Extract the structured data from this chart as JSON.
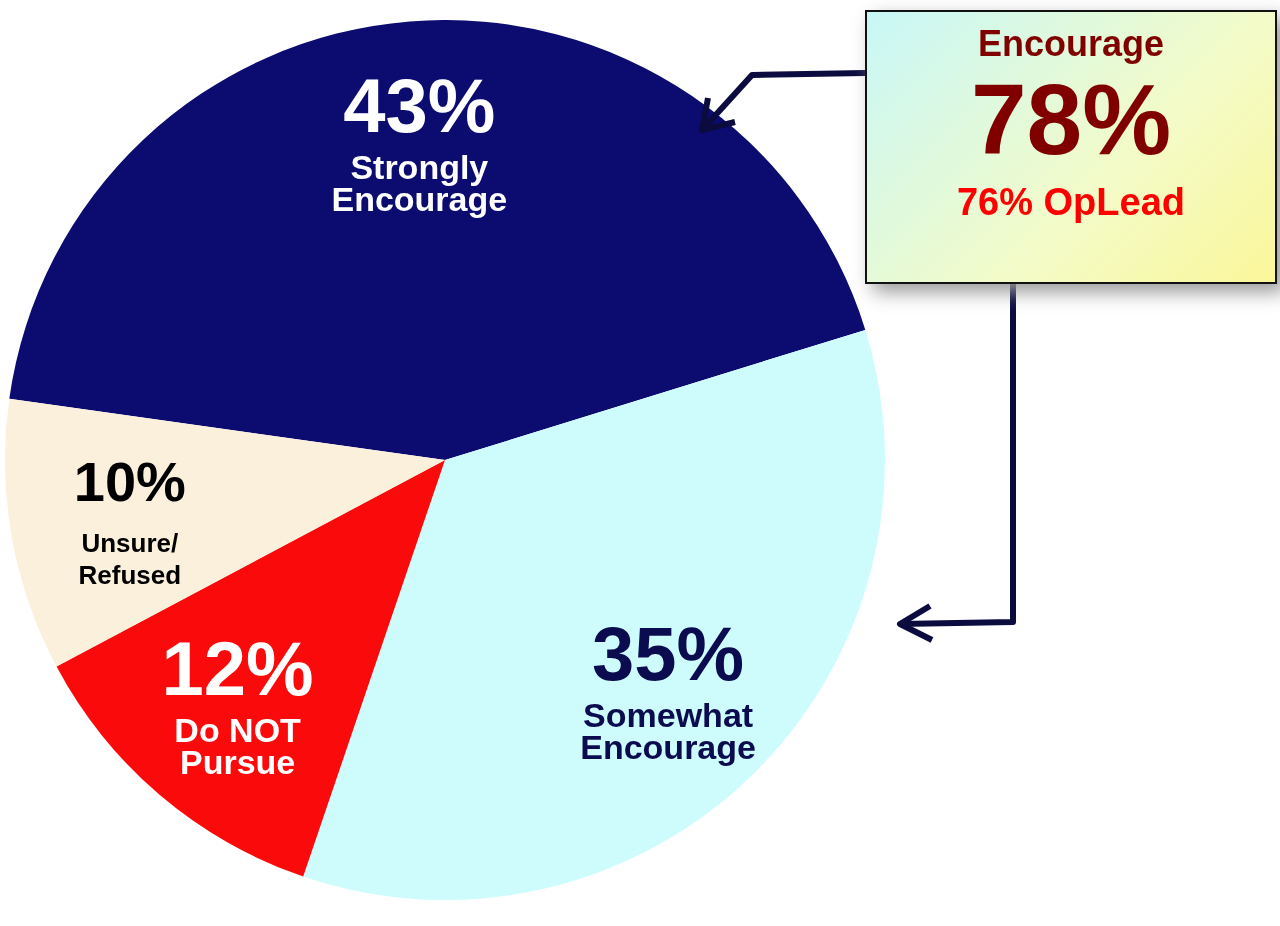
{
  "chart_data": {
    "type": "pie",
    "categories": [
      "Strongly Encourage",
      "Somewhat Encourage",
      "Do NOT Pursue",
      "Unsure/Refused"
    ],
    "values": [
      43,
      35,
      12,
      10
    ],
    "value_labels": [
      "43%",
      "35%",
      "12%",
      "10%"
    ],
    "colors": [
      "#0b0b70",
      "#cefcfc",
      "#fa0a0a",
      "#fbf0dc"
    ],
    "annotations": [
      "Encourage",
      "78%",
      "76% OpLead"
    ]
  }
}
